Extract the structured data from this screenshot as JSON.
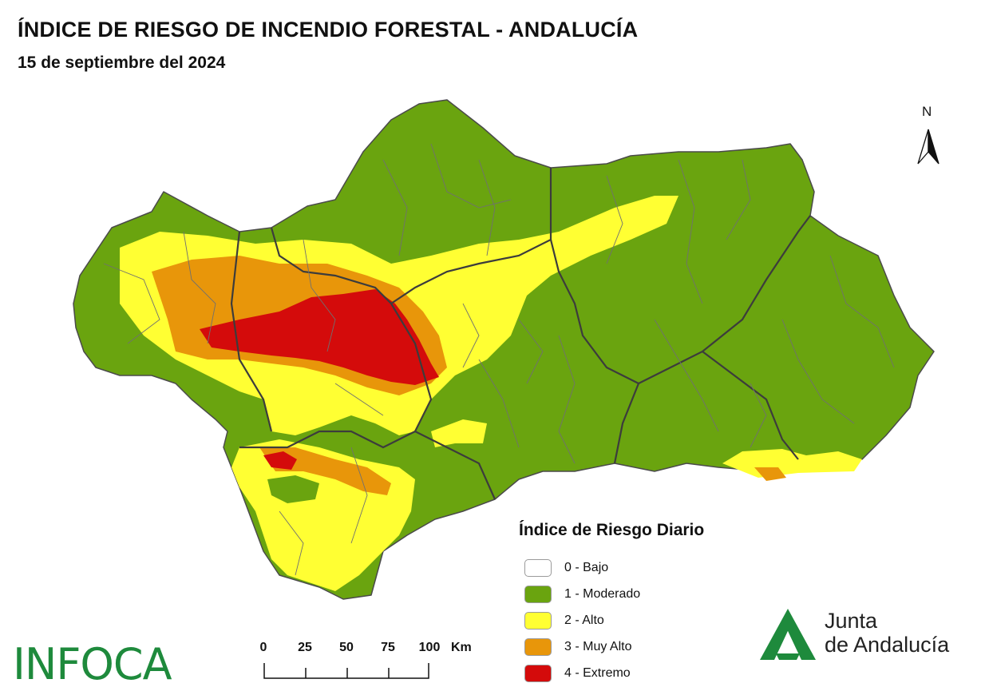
{
  "title": "ÍNDICE DE RIESGO DE INCENDIO FORESTAL - ANDALUCÍA",
  "date": "15 de septiembre del 2024",
  "north_label": "N",
  "legend": {
    "title": "Índice de Riesgo Diario",
    "items": [
      {
        "label": "0 - Bajo",
        "color": "#ffffff"
      },
      {
        "label": "1 - Moderado",
        "color": "#6aa40f"
      },
      {
        "label": "2 - Alto",
        "color": "#ffff33"
      },
      {
        "label": "3 - Muy Alto",
        "color": "#e8960a"
      },
      {
        "label": "4 - Extremo",
        "color": "#d40b0b"
      }
    ]
  },
  "scale": {
    "ticks": [
      "0",
      "25",
      "50",
      "75",
      "100"
    ],
    "unit": "Km"
  },
  "logo_infoca": "INFOCA",
  "logo_junta": {
    "line1": "Junta",
    "line2": "de Andalucía",
    "color": "#1e8a3c"
  },
  "colors": {
    "border": "#555555"
  }
}
